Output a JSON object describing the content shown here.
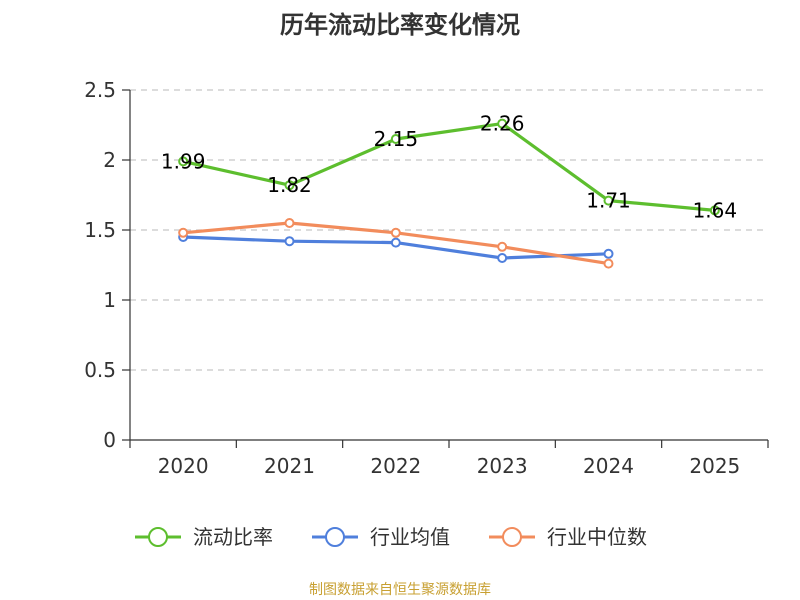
{
  "chart_data": {
    "type": "line",
    "title": "历年流动比率变化情况",
    "categories": [
      "2020",
      "2021",
      "2022",
      "2023",
      "2024",
      "2025"
    ],
    "ylim": [
      0,
      2.5
    ],
    "yticks": [
      "0",
      "0.5",
      "1",
      "1.5",
      "2",
      "2.5"
    ],
    "grid": true,
    "legend_position": "bottom",
    "series": [
      {
        "name": "流动比率",
        "color": "#5dbe2e",
        "values": [
          1.99,
          1.82,
          2.15,
          2.26,
          1.71,
          1.64
        ],
        "labels": [
          "1.99",
          "1.82",
          "2.15",
          "2.26",
          "1.71",
          "1.64"
        ]
      },
      {
        "name": "行业均值",
        "color": "#4f7fdc",
        "values": [
          1.45,
          1.42,
          1.41,
          1.3,
          1.33,
          null
        ]
      },
      {
        "name": "行业中位数",
        "color": "#f28c5c",
        "values": [
          1.48,
          1.55,
          1.48,
          1.38,
          1.26,
          null
        ]
      }
    ],
    "source": "制图数据来自恒生聚源数据库"
  }
}
